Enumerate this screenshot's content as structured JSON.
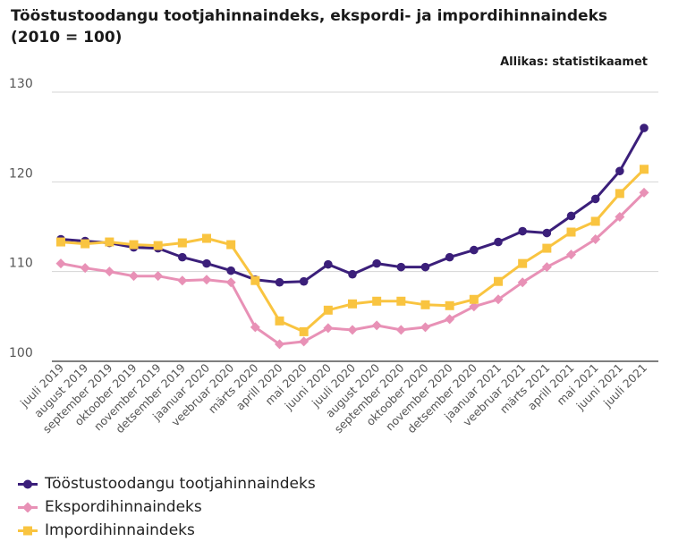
{
  "title_line1": "Tööstustoodangu tootjahinnaindeks, ekspordi- ja impordihinnaindeks",
  "title_line2": "(2010 = 100)",
  "source": "Allikas: statistikaamet",
  "chart_data": {
    "type": "line",
    "title": "Tööstustoodangu tootjahinnaindeks, ekspordi- ja impordihinnaindeks (2010 = 100)",
    "xlabel": "",
    "ylabel": "",
    "ylim": [
      100,
      130
    ],
    "yticks": [
      100,
      110,
      120,
      130
    ],
    "grid": true,
    "legend_position": "bottom-left",
    "categories": [
      "juuli 2019",
      "august 2019",
      "september 2019",
      "oktoober 2019",
      "november 2019",
      "detsember 2019",
      "jaanuar 2020",
      "veebruar 2020",
      "märts 2020",
      "aprill 2020",
      "mai 2020",
      "juuni 2020",
      "juuli 2020",
      "august 2020",
      "september 2020",
      "oktoober 2020",
      "november 2020",
      "detsember 2020",
      "jaanuar 2021",
      "veebruar 2021",
      "märts 2021",
      "aprill 2021",
      "mai 2021",
      "juuni 2021",
      "juuli 2021"
    ],
    "series": [
      {
        "name": "Tööstustoodangu tootjahinnaindeks",
        "color": "#3b1f7a",
        "marker": "circle",
        "values": [
          113.6,
          113.4,
          113.2,
          112.7,
          112.6,
          111.6,
          110.9,
          110.1,
          109.1,
          108.8,
          108.9,
          110.8,
          109.7,
          110.9,
          110.5,
          110.5,
          111.6,
          112.4,
          113.3,
          114.5,
          114.3,
          116.2,
          118.1,
          121.2,
          126.0
        ]
      },
      {
        "name": "Ekspordihinnaindeks",
        "color": "#e891b6",
        "marker": "diamond",
        "values": [
          110.9,
          110.4,
          110.0,
          109.5,
          109.5,
          109.0,
          109.1,
          108.8,
          103.8,
          101.9,
          102.2,
          103.7,
          103.5,
          104.0,
          103.5,
          103.8,
          104.7,
          106.1,
          106.9,
          108.8,
          110.5,
          111.9,
          113.6,
          116.1,
          118.8
        ]
      },
      {
        "name": "Impordihinnaindeks",
        "color": "#f9c440",
        "marker": "square",
        "values": [
          113.3,
          113.1,
          113.3,
          113.0,
          112.9,
          113.2,
          113.7,
          113.0,
          109.0,
          104.5,
          103.3,
          105.7,
          106.4,
          106.7,
          106.7,
          106.3,
          106.2,
          106.9,
          108.9,
          110.9,
          112.6,
          114.4,
          115.6,
          118.7,
          121.4
        ]
      }
    ]
  }
}
